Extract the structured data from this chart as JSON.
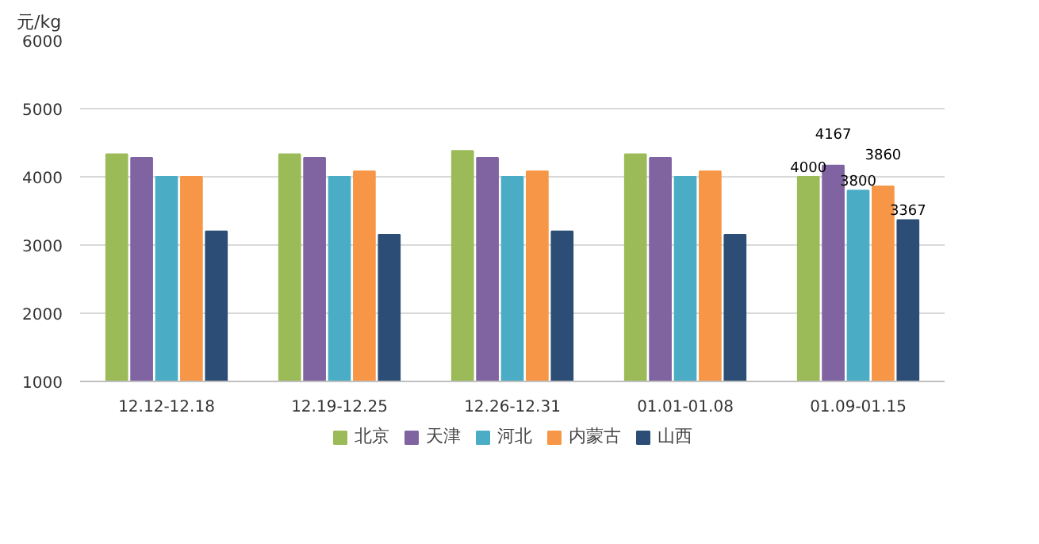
{
  "chart_data": {
    "type": "bar",
    "ylabel": "元/kg",
    "categories": [
      "12.12-12.18",
      "12.19-12.25",
      "12.26-12.31",
      "01.01-01.08",
      "01.09-01.15"
    ],
    "series": [
      {
        "name": "北京",
        "color": "#9bbb59",
        "values": [
          4330,
          4330,
          4380,
          4330,
          4000
        ],
        "value_labels": [
          null,
          null,
          null,
          null,
          "4000"
        ]
      },
      {
        "name": "天津",
        "color": "#8064a2",
        "values": [
          4280,
          4280,
          4280,
          4280,
          4167
        ],
        "value_labels": [
          null,
          null,
          null,
          null,
          "4167"
        ]
      },
      {
        "name": "河北",
        "color": "#4bacc6",
        "values": [
          4000,
          4000,
          4000,
          4000,
          3800
        ],
        "value_labels": [
          null,
          null,
          null,
          null,
          "3800"
        ]
      },
      {
        "name": "内蒙古",
        "color": "#f79646",
        "values": [
          4000,
          4080,
          4080,
          4080,
          3860
        ],
        "value_labels": [
          null,
          null,
          null,
          null,
          "3860"
        ]
      },
      {
        "name": "山西",
        "color": "#2c4d75",
        "values": [
          3200,
          3150,
          3200,
          3150,
          3367
        ],
        "value_labels": [
          null,
          null,
          null,
          null,
          "3367"
        ]
      }
    ],
    "ylim": [
      1000,
      6000
    ],
    "yticks": [
      1000,
      2000,
      3000,
      4000,
      5000,
      6000
    ],
    "grid": "y",
    "legend": "bottom"
  }
}
